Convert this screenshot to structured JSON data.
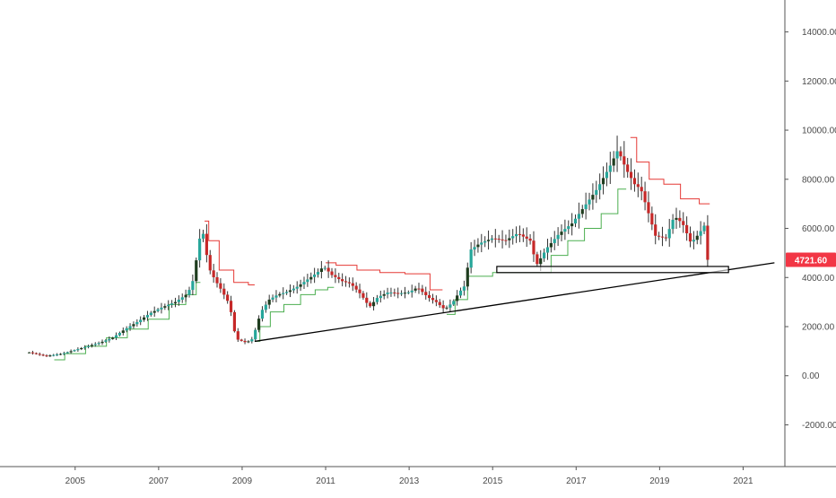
{
  "chart_data": {
    "type": "candlestick",
    "grid": false,
    "x_axis": {
      "range": [
        2003.2,
        2022.0
      ],
      "ticks": [
        2005,
        2007,
        2009,
        2011,
        2013,
        2015,
        2017,
        2019,
        2021
      ],
      "tick_labels": [
        "2005",
        "2007",
        "2009",
        "2011",
        "2013",
        "2015",
        "2017",
        "2019",
        "2021"
      ]
    },
    "y_axis": {
      "range": [
        -3700,
        15300
      ],
      "ticks": [
        -2000,
        0,
        2000,
        4000,
        6000,
        8000,
        10000,
        12000,
        14000
      ],
      "tick_labels": [
        "-2000.00",
        "0.00",
        "2000.00",
        "4000.00",
        "6000.00",
        "8000.00",
        "10000.00",
        "12000.00",
        "14000.00"
      ]
    },
    "last_price": {
      "value": 4721.6,
      "label": "4721.60"
    },
    "colors": {
      "up": "#26a69a",
      "up_dark": "#1f3d1f",
      "down": "#c62828",
      "stop_up": "#4caf50",
      "stop_down": "#e53935",
      "trendline": "#000000",
      "price_badge": "#f23645",
      "axis": "#555555"
    },
    "anchors": [
      [
        2003.9,
        950
      ],
      [
        2004.3,
        800
      ],
      [
        2004.7,
        900
      ],
      [
        2005.0,
        1050
      ],
      [
        2005.3,
        1200
      ],
      [
        2005.6,
        1350
      ],
      [
        2005.9,
        1550
      ],
      [
        2006.2,
        1900
      ],
      [
        2006.5,
        2200
      ],
      [
        2006.8,
        2550
      ],
      [
        2007.1,
        2800
      ],
      [
        2007.4,
        3000
      ],
      [
        2007.7,
        3350
      ],
      [
        2007.85,
        4000
      ],
      [
        2007.95,
        5400
      ],
      [
        2008.05,
        5950
      ],
      [
        2008.2,
        4400
      ],
      [
        2008.35,
        3900
      ],
      [
        2008.5,
        3500
      ],
      [
        2008.7,
        2900
      ],
      [
        2008.85,
        1500
      ],
      [
        2009.1,
        1350
      ],
      [
        2009.25,
        1500
      ],
      [
        2009.45,
        2600
      ],
      [
        2009.65,
        3100
      ],
      [
        2009.85,
        3300
      ],
      [
        2010.05,
        3400
      ],
      [
        2010.3,
        3600
      ],
      [
        2010.55,
        3900
      ],
      [
        2010.8,
        4200
      ],
      [
        2010.95,
        4450
      ],
      [
        2011.15,
        4100
      ],
      [
        2011.4,
        3850
      ],
      [
        2011.6,
        3750
      ],
      [
        2011.85,
        3300
      ],
      [
        2012.05,
        2800
      ],
      [
        2012.25,
        3200
      ],
      [
        2012.5,
        3400
      ],
      [
        2012.75,
        3350
      ],
      [
        2013.0,
        3400
      ],
      [
        2013.2,
        3600
      ],
      [
        2013.45,
        3200
      ],
      [
        2013.65,
        3000
      ],
      [
        2013.85,
        2700
      ],
      [
        2014.05,
        3000
      ],
      [
        2014.2,
        3400
      ],
      [
        2014.35,
        3700
      ],
      [
        2014.45,
        5100
      ],
      [
        2014.7,
        5400
      ],
      [
        2015.0,
        5600
      ],
      [
        2015.3,
        5500
      ],
      [
        2015.6,
        5800
      ],
      [
        2015.9,
        5500
      ],
      [
        2016.05,
        4500
      ],
      [
        2016.3,
        5200
      ],
      [
        2016.6,
        5800
      ],
      [
        2016.9,
        6200
      ],
      [
        2017.2,
        6900
      ],
      [
        2017.5,
        7600
      ],
      [
        2017.8,
        8500
      ],
      [
        2018.0,
        9200
      ],
      [
        2018.2,
        8400
      ],
      [
        2018.4,
        7800
      ],
      [
        2018.55,
        7600
      ],
      [
        2018.7,
        6800
      ],
      [
        2018.9,
        5700
      ],
      [
        2019.15,
        5600
      ],
      [
        2019.35,
        6500
      ],
      [
        2019.55,
        6200
      ],
      [
        2019.75,
        5400
      ],
      [
        2019.95,
        5800
      ],
      [
        2020.1,
        6200
      ],
      [
        2020.2,
        4721.6
      ]
    ],
    "trailing_stop": {
      "up": [
        [
          2004.5,
          650
        ],
        [
          2005.0,
          900
        ],
        [
          2005.5,
          1200
        ],
        [
          2006.0,
          1550
        ],
        [
          2006.5,
          1900
        ],
        [
          2007.0,
          2300
        ],
        [
          2007.5,
          2900
        ],
        [
          2007.8,
          3300
        ],
        [
          2008.0,
          3800
        ],
        [
          2009.3,
          1400
        ],
        [
          2009.55,
          2000
        ],
        [
          2009.8,
          2600
        ],
        [
          2010.2,
          2900
        ],
        [
          2010.6,
          3300
        ],
        [
          2010.9,
          3500
        ],
        [
          2011.2,
          3600
        ],
        [
          2013.9,
          2500
        ],
        [
          2014.3,
          3100
        ],
        [
          2014.5,
          4050
        ],
        [
          2015.5,
          4200
        ],
        [
          2016.2,
          4200
        ],
        [
          2016.6,
          4900
        ],
        [
          2017.0,
          5500
        ],
        [
          2017.4,
          6000
        ],
        [
          2017.8,
          6600
        ],
        [
          2018.2,
          7600
        ]
      ],
      "down": [
        [
          2008.1,
          6300
        ],
        [
          2008.3,
          5500
        ],
        [
          2008.6,
          4300
        ],
        [
          2009.0,
          3800
        ],
        [
          2009.3,
          3700
        ],
        [
          2011.0,
          4600
        ],
        [
          2011.5,
          4500
        ],
        [
          2012.0,
          4300
        ],
        [
          2012.6,
          4200
        ],
        [
          2013.2,
          4150
        ],
        [
          2013.8,
          3500
        ],
        [
          2018.3,
          9700
        ],
        [
          2018.6,
          8700
        ],
        [
          2018.9,
          8000
        ],
        [
          2019.3,
          7800
        ],
        [
          2019.7,
          7200
        ],
        [
          2020.2,
          7000
        ]
      ]
    },
    "trendline": {
      "from": [
        2009.3,
        1400
      ],
      "to": [
        2021.75,
        4600
      ]
    },
    "support_box": {
      "x": [
        2015.1,
        2020.65
      ],
      "y": [
        4200,
        4450
      ]
    }
  }
}
